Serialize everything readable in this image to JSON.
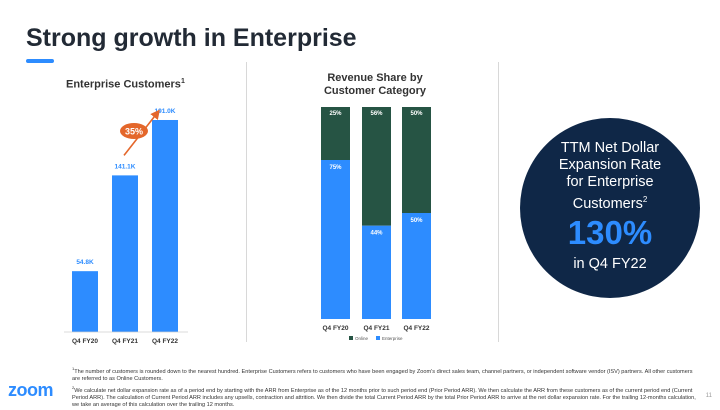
{
  "title": "Strong growth in Enterprise",
  "chart_data": [
    {
      "type": "bar",
      "title": "Enterprise Customers",
      "title_sup": "1",
      "categories": [
        "Q4 FY20",
        "Q4 FY21",
        "Q4 FY22"
      ],
      "values": [
        54.8,
        141.1,
        191.0
      ],
      "value_labels": [
        "54.8K",
        "141.1K",
        "191.0K"
      ],
      "units": "K",
      "ylim": [
        0,
        200
      ],
      "color": "#2d8cff",
      "annotation": {
        "label": "35%",
        "from": "Q4 FY21",
        "to": "Q4 FY22",
        "color": "#e4672b"
      }
    },
    {
      "type": "bar",
      "stacked": true,
      "title_lines": [
        "Revenue Share by",
        "Customer Category"
      ],
      "categories": [
        "Q4 FY20",
        "Q4 FY21",
        "Q4 FY22"
      ],
      "series": [
        {
          "name": "Enterprise",
          "values": [
            75,
            44,
            50
          ],
          "labels": [
            "75%",
            "44%",
            "50%"
          ],
          "color": "#2d8cff"
        },
        {
          "name": "Online",
          "values": [
            25,
            56,
            50
          ],
          "labels": [
            "25%",
            "56%",
            "50%"
          ],
          "color": "#265444"
        }
      ],
      "ylim": [
        0,
        100
      ],
      "legend": [
        "Online",
        "Enterprise"
      ]
    }
  ],
  "callout": {
    "lines": [
      "TTM Net Dollar",
      "Expansion Rate",
      "for Enterprise"
    ],
    "last_line": "Customers",
    "last_line_sup": "2",
    "value": "130%",
    "period": "in Q4 FY22"
  },
  "footnotes": {
    "f1_num": "1",
    "f1": "The number of customers is rounded down to the nearest hundred. Enterprise Customers refers to customers who have been engaged by Zoom's direct sales team, channel partners, or independent software vendor (ISV) partners. All other customers are referred to as Online Customers.",
    "f2_num": "2",
    "f2": "We calculate net dollar expansion rate as of a period end by starting with the ARR from Enterprise as of the 12 months prior to such period end (Prior Period ARR). We then calculate the ARR from these customers as of the current period end (Current Period ARR). The calculation of Current Period ARR includes any upsells, contraction and attrition. We then divide the total Current Period ARR by the total Prior Period ARR to arrive at the net dollar expansion rate. For the trailing 12-months calculation, we take an average of this calculation over the trailing 12 months."
  },
  "logo_text": "zoom",
  "page_number": "11",
  "colors": {
    "brand_blue": "#2d8cff",
    "navy": "#0f2747",
    "online_green": "#265444",
    "orange": "#e4672b"
  }
}
